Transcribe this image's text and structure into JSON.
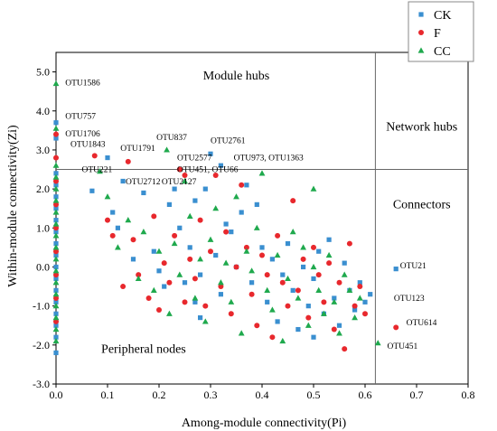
{
  "chart_data": {
    "type": "scatter",
    "title": "",
    "xlabel": "Among-module connectivity(Pi)",
    "ylabel": "Within-module connectivity(Zi)",
    "xlim": [
      0.0,
      0.8
    ],
    "ylim": [
      -3.0,
      5.5
    ],
    "x_ticks": [
      0.0,
      0.1,
      0.2,
      0.3,
      0.4,
      0.5,
      0.6,
      0.7,
      0.8
    ],
    "x_tick_labels": [
      "0.0",
      "0.1",
      "0.2",
      "0.3",
      "0.4",
      "0.5",
      "0.6",
      "0.7",
      "0.8"
    ],
    "y_ticks": [
      -3.0,
      -2.0,
      -1.0,
      0.0,
      1.0,
      2.0,
      3.0,
      4.0,
      5.0
    ],
    "y_tick_labels": [
      "-3.0",
      "-2.0",
      "-1.0",
      "0.0",
      "1.0",
      "2.0",
      "3.0",
      "4.0",
      "5.0"
    ],
    "thresholds": {
      "zi": 2.5,
      "pi": 0.62
    },
    "legend": {
      "position": "top-right",
      "entries": [
        {
          "label": "CK",
          "marker": "square",
          "color": "#3a8fd0"
        },
        {
          "label": "F",
          "marker": "circle",
          "color": "#e8282d"
        },
        {
          "label": "CC",
          "marker": "triangle",
          "color": "#1fa94d"
        }
      ]
    },
    "region_labels": [
      {
        "text": "Module hubs",
        "x": 0.35,
        "y": 4.8
      },
      {
        "text": "Network hubs",
        "x": 0.71,
        "y": 3.5
      },
      {
        "text": "Connectors",
        "x": 0.71,
        "y": 1.5
      },
      {
        "text": "Peripheral nodes",
        "x": 0.17,
        "y": -2.2
      }
    ],
    "annotations": [
      {
        "text": "OTU1586",
        "x": 0.018,
        "y": 4.65
      },
      {
        "text": "OTU757",
        "x": 0.018,
        "y": 3.8
      },
      {
        "text": "OTU1706",
        "x": 0.018,
        "y": 3.35
      },
      {
        "text": "OTU1843",
        "x": 0.028,
        "y": 3.08
      },
      {
        "text": "OTU1791",
        "x": 0.125,
        "y": 2.97
      },
      {
        "text": "OTU837",
        "x": 0.195,
        "y": 3.25
      },
      {
        "text": "OTU2761",
        "x": 0.3,
        "y": 3.17
      },
      {
        "text": "OTU2577",
        "x": 0.235,
        "y": 2.73
      },
      {
        "text": "OTU973, OTU1363",
        "x": 0.345,
        "y": 2.73
      },
      {
        "text": "OTU221",
        "x": 0.05,
        "y": 2.43
      },
      {
        "text": "OTU451, OTU66",
        "x": 0.235,
        "y": 2.43
      },
      {
        "text": "OTU2712",
        "x": 0.135,
        "y": 2.12
      },
      {
        "text": "OTU2127",
        "x": 0.205,
        "y": 2.12
      },
      {
        "text": "OTU21",
        "x": 0.668,
        "y": -0.03
      },
      {
        "text": "OTU123",
        "x": 0.656,
        "y": -0.87
      },
      {
        "text": "OTU614",
        "x": 0.68,
        "y": -1.5
      },
      {
        "text": "OTU451",
        "x": 0.643,
        "y": -2.1
      }
    ],
    "series": [
      {
        "name": "CK",
        "marker": "square",
        "color": "#3a8fd0",
        "points": [
          [
            0.0,
            3.7
          ],
          [
            0.0,
            3.3
          ],
          [
            0.0,
            2.4
          ],
          [
            0.0,
            2.1
          ],
          [
            0.0,
            1.8
          ],
          [
            0.0,
            1.5
          ],
          [
            0.0,
            1.2
          ],
          [
            0.0,
            0.9
          ],
          [
            0.0,
            0.6
          ],
          [
            0.0,
            0.3
          ],
          [
            0.0,
            0.0
          ],
          [
            0.0,
            -0.3
          ],
          [
            0.0,
            -0.6
          ],
          [
            0.0,
            -0.9
          ],
          [
            0.0,
            -1.2
          ],
          [
            0.0,
            -1.5
          ],
          [
            0.0,
            -1.8
          ],
          [
            0.0,
            -2.2
          ],
          [
            0.07,
            1.95
          ],
          [
            0.1,
            2.8
          ],
          [
            0.11,
            1.4
          ],
          [
            0.12,
            1.0
          ],
          [
            0.13,
            2.2
          ],
          [
            0.15,
            0.2
          ],
          [
            0.17,
            1.9
          ],
          [
            0.19,
            0.4
          ],
          [
            0.2,
            -0.1
          ],
          [
            0.21,
            -0.5
          ],
          [
            0.22,
            1.6
          ],
          [
            0.23,
            2.0
          ],
          [
            0.24,
            1.0
          ],
          [
            0.25,
            -0.4
          ],
          [
            0.26,
            0.5
          ],
          [
            0.27,
            -0.9
          ],
          [
            0.27,
            1.7
          ],
          [
            0.28,
            -0.2
          ],
          [
            0.28,
            -1.3
          ],
          [
            0.29,
            2.0
          ],
          [
            0.3,
            2.9
          ],
          [
            0.31,
            0.3
          ],
          [
            0.32,
            -0.7
          ],
          [
            0.32,
            2.6
          ],
          [
            0.33,
            1.1
          ],
          [
            0.34,
            0.9
          ],
          [
            0.35,
            0.0
          ],
          [
            0.36,
            1.4
          ],
          [
            0.37,
            2.1
          ],
          [
            0.38,
            -0.4
          ],
          [
            0.39,
            1.6
          ],
          [
            0.4,
            0.5
          ],
          [
            0.41,
            -0.9
          ],
          [
            0.42,
            0.2
          ],
          [
            0.43,
            -1.4
          ],
          [
            0.44,
            -0.2
          ],
          [
            0.45,
            0.6
          ],
          [
            0.46,
            -0.6
          ],
          [
            0.47,
            -1.6
          ],
          [
            0.48,
            0.0
          ],
          [
            0.49,
            -1.0
          ],
          [
            0.5,
            -0.3
          ],
          [
            0.5,
            -1.8
          ],
          [
            0.51,
            0.4
          ],
          [
            0.52,
            -1.2
          ],
          [
            0.53,
            0.7
          ],
          [
            0.54,
            -0.8
          ],
          [
            0.55,
            -1.5
          ],
          [
            0.56,
            0.1
          ],
          [
            0.57,
            -0.6
          ],
          [
            0.58,
            -1.1
          ],
          [
            0.59,
            -0.4
          ],
          [
            0.6,
            -0.9
          ],
          [
            0.61,
            -0.7
          ],
          [
            0.66,
            -0.05
          ]
        ]
      },
      {
        "name": "F",
        "marker": "circle",
        "color": "#e8282d",
        "points": [
          [
            0.0,
            3.4
          ],
          [
            0.0,
            2.8
          ],
          [
            0.0,
            2.2
          ],
          [
            0.0,
            1.6
          ],
          [
            0.0,
            1.0
          ],
          [
            0.0,
            0.4
          ],
          [
            0.0,
            -0.2
          ],
          [
            0.0,
            -0.8
          ],
          [
            0.0,
            -1.4
          ],
          [
            0.075,
            2.85
          ],
          [
            0.1,
            1.2
          ],
          [
            0.11,
            0.8
          ],
          [
            0.13,
            -0.5
          ],
          [
            0.14,
            2.7
          ],
          [
            0.15,
            0.7
          ],
          [
            0.16,
            -0.2
          ],
          [
            0.18,
            -0.8
          ],
          [
            0.19,
            1.3
          ],
          [
            0.2,
            -1.1
          ],
          [
            0.21,
            0.1
          ],
          [
            0.22,
            -0.4
          ],
          [
            0.23,
            0.8
          ],
          [
            0.24,
            2.5
          ],
          [
            0.25,
            2.35
          ],
          [
            0.25,
            -0.9
          ],
          [
            0.26,
            0.2
          ],
          [
            0.27,
            -0.3
          ],
          [
            0.28,
            1.2
          ],
          [
            0.29,
            -1.0
          ],
          [
            0.3,
            0.4
          ],
          [
            0.31,
            2.35
          ],
          [
            0.32,
            -0.5
          ],
          [
            0.33,
            0.9
          ],
          [
            0.34,
            -1.2
          ],
          [
            0.35,
            0.0
          ],
          [
            0.36,
            2.1
          ],
          [
            0.37,
            0.5
          ],
          [
            0.38,
            -0.7
          ],
          [
            0.39,
            -1.5
          ],
          [
            0.4,
            0.3
          ],
          [
            0.41,
            -0.2
          ],
          [
            0.42,
            -1.8
          ],
          [
            0.43,
            0.8
          ],
          [
            0.44,
            -0.4
          ],
          [
            0.45,
            -1.0
          ],
          [
            0.46,
            1.7
          ],
          [
            0.47,
            -0.6
          ],
          [
            0.48,
            0.2
          ],
          [
            0.49,
            -1.3
          ],
          [
            0.5,
            0.5
          ],
          [
            0.51,
            -0.2
          ],
          [
            0.52,
            -0.9
          ],
          [
            0.53,
            0.1
          ],
          [
            0.54,
            -1.6
          ],
          [
            0.55,
            -0.4
          ],
          [
            0.56,
            -2.1
          ],
          [
            0.57,
            0.6
          ],
          [
            0.58,
            -1.0
          ],
          [
            0.59,
            -0.5
          ],
          [
            0.6,
            -1.2
          ],
          [
            0.66,
            -1.55
          ]
        ]
      },
      {
        "name": "CC",
        "marker": "triangle",
        "color": "#1fa94d",
        "points": [
          [
            0.0,
            4.7
          ],
          [
            0.0,
            3.55
          ],
          [
            0.0,
            2.6
          ],
          [
            0.0,
            2.3
          ],
          [
            0.0,
            2.0
          ],
          [
            0.0,
            1.7
          ],
          [
            0.0,
            1.4
          ],
          [
            0.0,
            1.1
          ],
          [
            0.0,
            0.8
          ],
          [
            0.0,
            0.5
          ],
          [
            0.0,
            0.2
          ],
          [
            0.0,
            -0.1
          ],
          [
            0.0,
            -0.4
          ],
          [
            0.0,
            -0.7
          ],
          [
            0.0,
            -1.0
          ],
          [
            0.0,
            -1.3
          ],
          [
            0.0,
            -1.6
          ],
          [
            0.0,
            -1.9
          ],
          [
            0.085,
            2.45
          ],
          [
            0.1,
            1.8
          ],
          [
            0.12,
            0.5
          ],
          [
            0.14,
            1.2
          ],
          [
            0.16,
            -0.3
          ],
          [
            0.17,
            0.9
          ],
          [
            0.19,
            -0.6
          ],
          [
            0.2,
            0.4
          ],
          [
            0.215,
            3.0
          ],
          [
            0.22,
            -1.2
          ],
          [
            0.23,
            0.6
          ],
          [
            0.24,
            -0.2
          ],
          [
            0.25,
            2.2
          ],
          [
            0.26,
            1.3
          ],
          [
            0.27,
            -0.8
          ],
          [
            0.28,
            0.2
          ],
          [
            0.29,
            -1.4
          ],
          [
            0.3,
            0.7
          ],
          [
            0.31,
            1.5
          ],
          [
            0.32,
            -0.4
          ],
          [
            0.33,
            0.1
          ],
          [
            0.34,
            -0.9
          ],
          [
            0.35,
            1.8
          ],
          [
            0.36,
            -1.7
          ],
          [
            0.37,
            0.4
          ],
          [
            0.38,
            -0.1
          ],
          [
            0.39,
            1.0
          ],
          [
            0.4,
            2.4
          ],
          [
            0.41,
            -0.6
          ],
          [
            0.42,
            -1.1
          ],
          [
            0.43,
            0.3
          ],
          [
            0.44,
            -1.9
          ],
          [
            0.45,
            -0.3
          ],
          [
            0.46,
            0.9
          ],
          [
            0.47,
            -0.8
          ],
          [
            0.48,
            0.5
          ],
          [
            0.49,
            -1.5
          ],
          [
            0.5,
            2.0
          ],
          [
            0.5,
            0.0
          ],
          [
            0.51,
            -0.6
          ],
          [
            0.52,
            -1.2
          ],
          [
            0.53,
            0.3
          ],
          [
            0.54,
            -0.9
          ],
          [
            0.55,
            -1.7
          ],
          [
            0.56,
            -0.2
          ],
          [
            0.57,
            -0.6
          ],
          [
            0.58,
            -1.3
          ],
          [
            0.59,
            -0.8
          ],
          [
            0.625,
            -1.95
          ]
        ]
      }
    ]
  }
}
